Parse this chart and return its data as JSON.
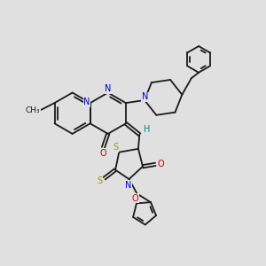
{
  "bg_color": "#e0e0e0",
  "bond_color": "#1a1a1a",
  "n_color": "#0000cc",
  "o_color": "#cc0000",
  "s_color": "#999900",
  "h_color": "#008888",
  "lw": 1.3,
  "fs": 7.0,
  "xlim": [
    0,
    10
  ],
  "ylim": [
    0,
    10
  ]
}
